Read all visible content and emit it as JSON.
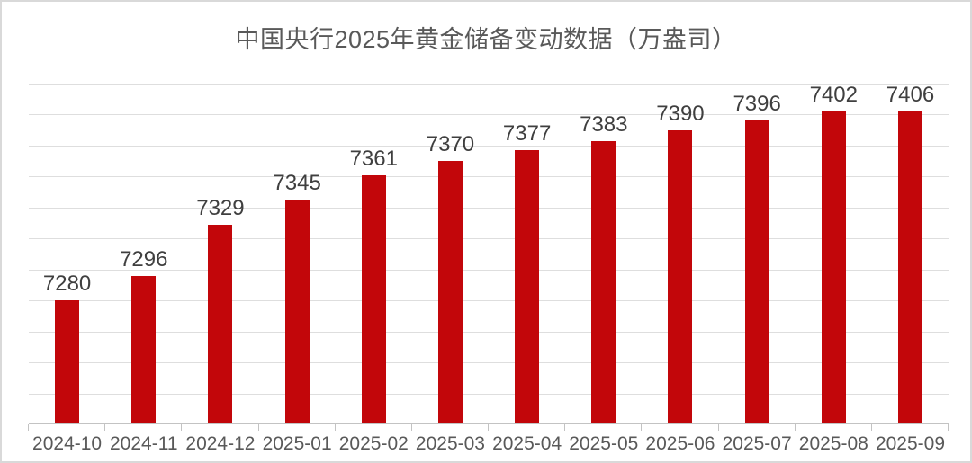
{
  "chart_data": {
    "type": "bar",
    "title": "中国央行2025年黄金储备变动数据（万盎司）",
    "categories": [
      "2024-10",
      "2024-11",
      "2024-12",
      "2025-01",
      "2025-02",
      "2025-03",
      "2025-04",
      "2025-05",
      "2025-06",
      "2025-07",
      "2025-08",
      "2025-09"
    ],
    "values": [
      7280,
      7296,
      7329,
      7345,
      7361,
      7370,
      7377,
      7383,
      7390,
      7396,
      7402,
      7406
    ],
    "xlabel": "",
    "ylabel": "",
    "ylim": [
      7200,
      7420
    ],
    "y_major_unit": 20,
    "grid": true,
    "y_axis_tick_labels_shown": false,
    "legend_position": "none",
    "data_labels_shown": true,
    "colors": {
      "bar": "#c2060a",
      "gridline": "#dedede",
      "axis_line": "#c3c3c3",
      "tick": "#c3c3c3",
      "title_text": "#595959",
      "value_label_text": "#3f3f3f",
      "axis_label_text": "#595959",
      "frame_border": "#d9d9d9",
      "background": "#ffffff"
    }
  }
}
